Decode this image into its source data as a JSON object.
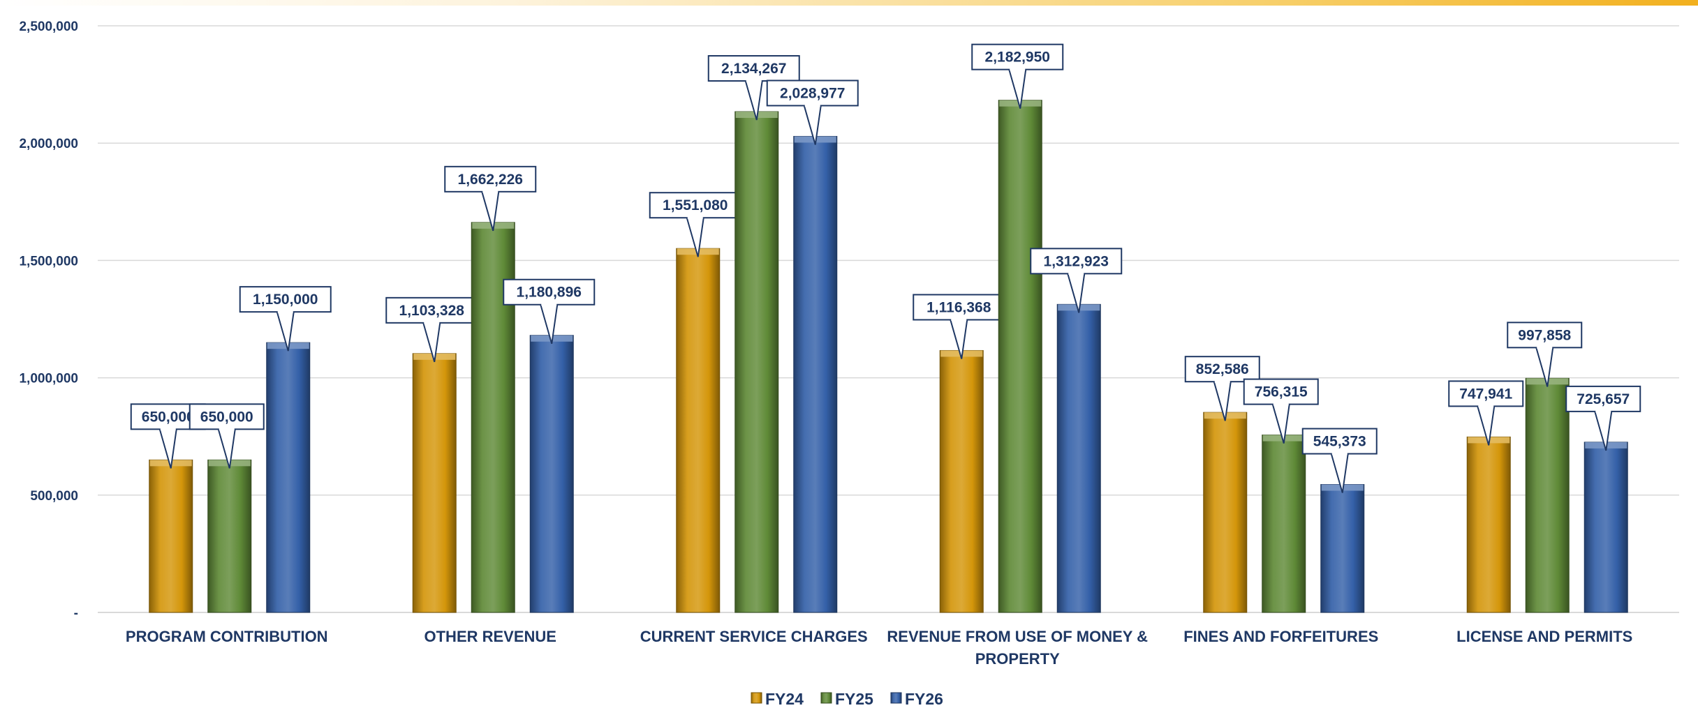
{
  "chart_data": {
    "type": "bar",
    "title": "",
    "categories": [
      "PROGRAM CONTRIBUTION",
      "OTHER REVENUE",
      "CURRENT SERVICE CHARGES",
      "REVENUE FROM USE OF MONEY & PROPERTY",
      "FINES AND FORFEITURES",
      "LICENSE AND PERMITS"
    ],
    "series": [
      {
        "name": "FY24",
        "color": "#d4960a",
        "values": [
          650000,
          1103328,
          1551080,
          1116368,
          852586,
          747941
        ]
      },
      {
        "name": "FY25",
        "color": "#5f8a37",
        "values": [
          650000,
          1662226,
          2134267,
          2182950,
          756315,
          997858
        ]
      },
      {
        "name": "FY26",
        "color": "#3460a8",
        "values": [
          1150000,
          1180896,
          2028977,
          1312923,
          545373,
          725657
        ]
      }
    ],
    "data_labels": [
      [
        "650,000",
        "1,103,328",
        "1,551,080",
        "1,116,368",
        "852,586",
        "747,941"
      ],
      [
        "650,000",
        "1,662,226",
        "2,134,267",
        "2,182,950",
        "756,315",
        "997,858"
      ],
      [
        "1,150,000",
        "1,180,896",
        "2,028,977",
        "1,312,923",
        "545,373",
        "725,657"
      ]
    ],
    "y_ticks": [
      {
        "value": 0,
        "label": "-"
      },
      {
        "value": 500000,
        "label": "500,000"
      },
      {
        "value": 1000000,
        "label": "1,000,000"
      },
      {
        "value": 1500000,
        "label": "1,500,000"
      },
      {
        "value": 2000000,
        "label": "2,000,000"
      },
      {
        "value": 2500000,
        "label": "2,500,000"
      }
    ],
    "ylim": [
      0,
      2500000
    ],
    "grid": true,
    "legend_position": "bottom",
    "xlabel": "",
    "ylabel": ""
  }
}
